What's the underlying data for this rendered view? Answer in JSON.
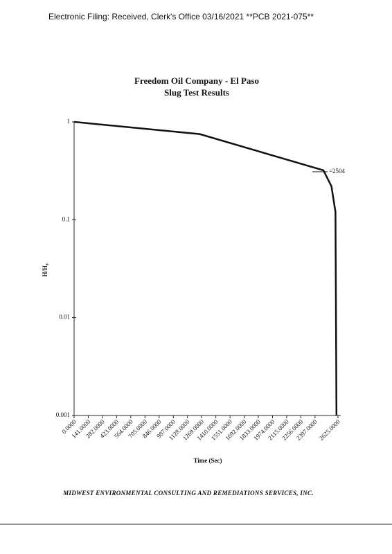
{
  "header": "Electronic Filing: Received, Clerk's Office 03/16/2021 **PCB 2021-075**",
  "chart_data": {
    "type": "line",
    "title": "Freedom Oil Company - El Paso",
    "subtitle": "Slug Test Results",
    "x_label": "Time (Sec)",
    "y_label": "H/H₀",
    "annotation": "=2504",
    "log_y": true,
    "grid": false,
    "xlim": [
      0,
      2625
    ],
    "ylim": [
      0.001,
      1
    ],
    "yticks": [
      1,
      0.1,
      0.01,
      0.001
    ],
    "xticks": [
      {
        "value": 0,
        "label": "0.0000"
      },
      {
        "value": 141,
        "label": "141.0000"
      },
      {
        "value": 282,
        "label": "282.0000"
      },
      {
        "value": 423,
        "label": "423.0000"
      },
      {
        "value": 564,
        "label": "564.0000"
      },
      {
        "value": 705,
        "label": "705.0000"
      },
      {
        "value": 846,
        "label": "846.0000"
      },
      {
        "value": 987,
        "label": "987.0000"
      },
      {
        "value": 1128,
        "label": "1128.0000"
      },
      {
        "value": 1269,
        "label": "1269.0000"
      },
      {
        "value": 1410,
        "label": "1410.0000"
      },
      {
        "value": 1551,
        "label": "1551.0000"
      },
      {
        "value": 1692,
        "label": "1692.0000"
      },
      {
        "value": 1833,
        "label": "1833.0000"
      },
      {
        "value": 1974,
        "label": "1974.0000"
      },
      {
        "value": 2115,
        "label": "2115.0000"
      },
      {
        "value": 2256,
        "label": "2256.0000"
      },
      {
        "value": 2397,
        "label": "2397.0000"
      },
      {
        "value": 2625,
        "label": "2625.0000"
      }
    ],
    "series": [
      {
        "name": "H/H₀",
        "color": "#111111",
        "x": [
          0,
          1250,
          2480,
          2560,
          2600,
          2610
        ],
        "values": [
          1,
          0.75,
          0.32,
          0.22,
          0.12,
          0.001
        ]
      }
    ]
  },
  "footer": "MIDWEST ENVIRONMENTAL CONSULTING AND REMEDIATIONS SERVICES, INC."
}
